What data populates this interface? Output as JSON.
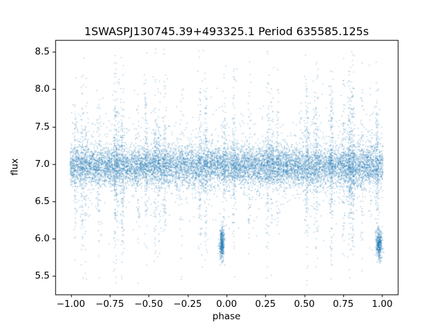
{
  "chart_data": {
    "type": "scatter",
    "title": "1SWASPJ130745.39+493325.1 Period 635585.125s",
    "xlabel": "phase",
    "ylabel": "flux",
    "xlim": [
      -1.1,
      1.1
    ],
    "ylim": [
      5.25,
      8.66
    ],
    "x_ticks": [
      {
        "value": -1.0,
        "label": "−1.00"
      },
      {
        "value": -0.75,
        "label": "−0.75"
      },
      {
        "value": -0.5,
        "label": "−0.50"
      },
      {
        "value": -0.25,
        "label": "−0.25"
      },
      {
        "value": 0.0,
        "label": "0.00"
      },
      {
        "value": 0.25,
        "label": "0.25"
      },
      {
        "value": 0.5,
        "label": "0.50"
      },
      {
        "value": 0.75,
        "label": "0.75"
      },
      {
        "value": 1.0,
        "label": "1.00"
      }
    ],
    "y_ticks": [
      {
        "value": 5.5,
        "label": "5.5"
      },
      {
        "value": 6.0,
        "label": "6.0"
      },
      {
        "value": 6.5,
        "label": "6.5"
      },
      {
        "value": 7.0,
        "label": "7.0"
      },
      {
        "value": 7.5,
        "label": "7.5"
      },
      {
        "value": 8.0,
        "label": "8.0"
      },
      {
        "value": 8.5,
        "label": "8.5"
      }
    ],
    "grid": false,
    "legend": "none",
    "point_color": "#1f77b4",
    "point_alpha": 0.45,
    "point_size": 1.3,
    "spine_color": "#000000",
    "background_color": "#ffffff",
    "seed": 1307,
    "flux_clip": [
      5.33,
      8.57
    ],
    "series": [
      {
        "name": "main-band",
        "kind": "uniform-x",
        "n": 9500,
        "x_range": [
          -1.005,
          1.005
        ],
        "flux_mean": 6.97,
        "flux_sd": 0.13
      },
      {
        "name": "broad-scatter",
        "kind": "uniform-x",
        "n": 1500,
        "x_range": [
          -1.0,
          1.0
        ],
        "flux_mean": 7.0,
        "flux_sd": 0.34
      },
      {
        "name": "vertical-streaks",
        "kind": "streaks",
        "n_streaks": 40,
        "x_range": [
          -1.0,
          1.0
        ],
        "points_min": 30,
        "points_max": 110,
        "x_jitter_sd": 0.006,
        "flux_mean": 7.0,
        "flux_sd": 0.62
      },
      {
        "name": "eclipse-dip-left",
        "kind": "cluster",
        "n": 380,
        "x_mean": -0.03,
        "x_sd": 0.008,
        "flux_mean": 5.93,
        "flux_sd": 0.1
      },
      {
        "name": "eclipse-dip-right",
        "kind": "cluster",
        "n": 380,
        "x_mean": 0.98,
        "x_sd": 0.01,
        "flux_mean": 5.92,
        "flux_sd": 0.1
      }
    ]
  }
}
